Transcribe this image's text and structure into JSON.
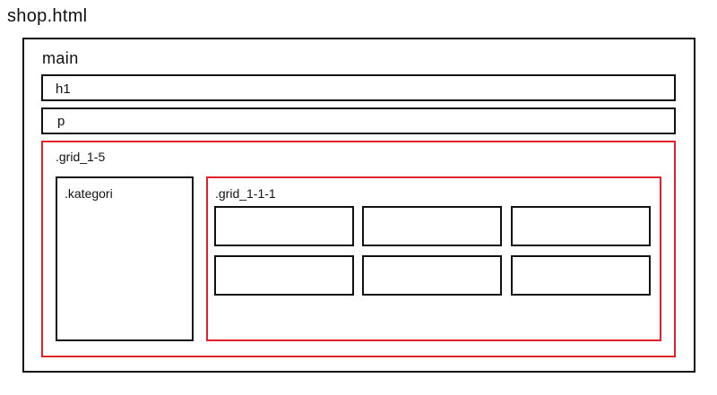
{
  "title": "shop.html",
  "main": {
    "label": "main",
    "h1": {
      "label": "h1"
    },
    "p": {
      "label": "p"
    },
    "grid_1_5": {
      "label": ".grid_1-5",
      "kategori": {
        "label": ".kategori"
      },
      "grid_1_1_1": {
        "label": ".grid_1-1-1",
        "cells": [
          "",
          "",
          "",
          "",
          "",
          ""
        ]
      }
    }
  },
  "colors": {
    "outline": "#111111",
    "grid_outline": "#e0202a",
    "background": "#ffffff"
  }
}
